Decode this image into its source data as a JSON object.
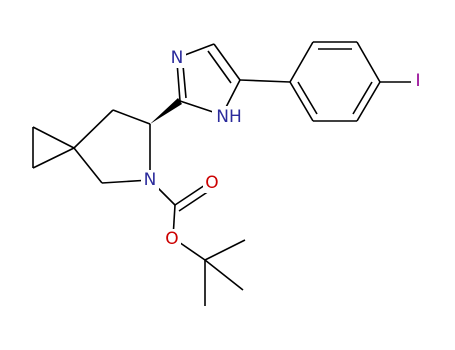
{
  "atoms": {
    "imidazole_n": "N",
    "imidazole_nh": "NH",
    "pyrrolidine_n": "N",
    "carbonyl_o": "O",
    "ester_o": "O",
    "iodine": "I"
  }
}
